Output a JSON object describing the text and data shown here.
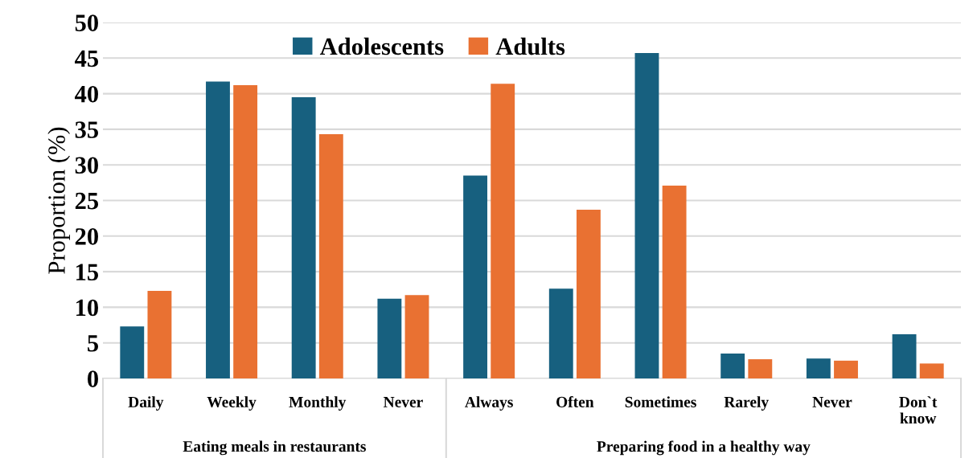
{
  "chart_data": {
    "type": "bar",
    "ylabel": "Proportion (%)",
    "categories": [
      "Daily",
      "Weekly",
      "Monthly",
      "Never",
      "Always",
      "Often",
      "Sometimes",
      "Rarely",
      "Never",
      "Don`t\nknow"
    ],
    "series": [
      {
        "name": "Adolescents",
        "color": "#17607f",
        "values": [
          7.3,
          41.7,
          39.5,
          11.2,
          28.5,
          12.6,
          45.7,
          3.5,
          2.8,
          6.2
        ]
      },
      {
        "name": "Adults",
        "color": "#e97132",
        "values": [
          12.3,
          41.2,
          34.3,
          11.7,
          41.4,
          23.7,
          27.1,
          2.7,
          2.5,
          2.1
        ]
      }
    ],
    "ylim": [
      0,
      50
    ],
    "yticks": [
      0,
      5,
      10,
      15,
      20,
      25,
      30,
      35,
      40,
      45,
      50
    ],
    "grid": "y",
    "legend": "top",
    "annotations": [
      "Eating meals in restaurants",
      "Preparing food in a healthy way"
    ]
  }
}
